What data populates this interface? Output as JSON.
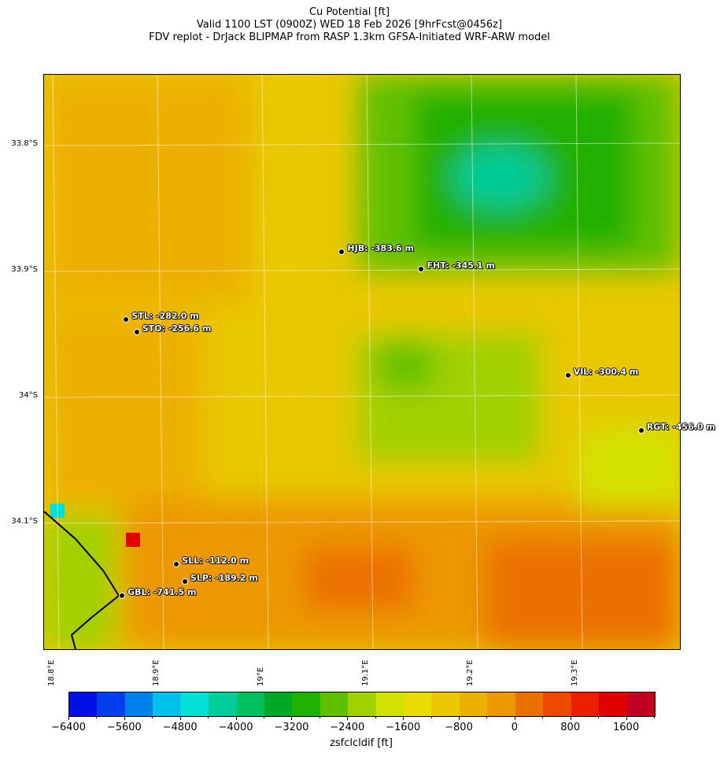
{
  "title": {
    "line1": "Cu Potential [ft]",
    "line2": "Valid 1100 LST (0900Z) WED 18 Feb 2026 [9hrFcst@0456z]",
    "line3": "FDV replot - DrJack BLIPMAP from RASP 1.3km GFSA-Initiated WRF-ARW model"
  },
  "chart_data": {
    "type": "heatmap",
    "xticks": [
      "18.8°E",
      "18.9°E",
      "19°E",
      "19.1°E",
      "19.2°E",
      "19.3°E"
    ],
    "yticks": [
      "33.8°S",
      "33.9°S",
      "34°S",
      "34.1°S"
    ],
    "colorbar": {
      "label": "zsfclcldif [ft]",
      "ticks": [
        "−6400",
        "−5600",
        "−4800",
        "−4000",
        "−3200",
        "−2400",
        "−1600",
        "−800",
        "0",
        "800",
        "1600"
      ],
      "range": [
        -6400,
        2000
      ],
      "step": 400,
      "colors": [
        "#0010e6",
        "#0040ec",
        "#0080ea",
        "#00c0ea",
        "#00e0d6",
        "#00cc98",
        "#00c060",
        "#00a828",
        "#20b000",
        "#60c000",
        "#a0d000",
        "#d2e200",
        "#e8dc00",
        "#ecc800",
        "#ecb000",
        "#ec9800",
        "#ec7000",
        "#ec4800",
        "#ec2000",
        "#e00000",
        "#c00020"
      ]
    },
    "stations": [
      {
        "name": "HJB",
        "label": "HJB: -383.6 m",
        "lon": 19.077,
        "lat": -33.885
      },
      {
        "name": "FHT",
        "label": "FHT: -345.1 m",
        "lon": 19.153,
        "lat": -33.899
      },
      {
        "name": "STL",
        "label": "STL: -282.0 m",
        "lon": 18.871,
        "lat": -33.939
      },
      {
        "name": "STO",
        "label": "STO: -256.6 m",
        "lon": 18.881,
        "lat": -33.949
      },
      {
        "name": "VIL",
        "label": "VIL: -300.4 m",
        "lon": 19.293,
        "lat": -33.983
      },
      {
        "name": "RGT",
        "label": "RGT: -456.0 m",
        "lon": 19.363,
        "lat": -34.027
      },
      {
        "name": "SLL",
        "label": "SLL: -112.0 m",
        "lon": 18.919,
        "lat": -34.133
      },
      {
        "name": "SLP",
        "label": "SLP: -189.2 m",
        "lon": 18.927,
        "lat": -34.147
      },
      {
        "name": "GBL",
        "label": "GBL: -741.5 m",
        "lon": 18.867,
        "lat": -34.158
      }
    ]
  }
}
